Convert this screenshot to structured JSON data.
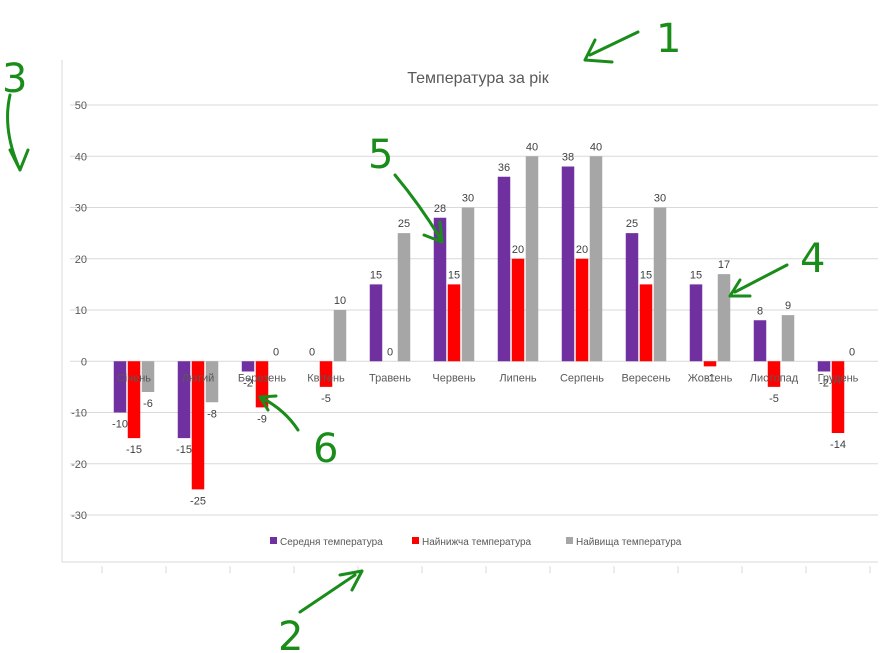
{
  "chart_data": {
    "type": "bar",
    "title": "Температура за рік",
    "xlabel": "",
    "ylabel": "",
    "ylim": [
      -30,
      50
    ],
    "yticks": [
      50,
      40,
      30,
      20,
      10,
      0,
      -10,
      -20,
      -30
    ],
    "grid": true,
    "legend_position": "bottom",
    "categories": [
      "Січень",
      "Лютий",
      "Березень",
      "Квітень",
      "Травень",
      "Червень",
      "Липень",
      "Серпень",
      "Вересень",
      "Жовтень",
      "Листопад",
      "Грудень"
    ],
    "series": [
      {
        "name": "Середня температура",
        "color": "#7030a0",
        "values": [
          -10,
          -15,
          -2,
          0,
          15,
          28,
          36,
          38,
          25,
          15,
          8,
          -2
        ],
        "labels": [
          "-10",
          "-15",
          "-2",
          "0",
          "15",
          "28",
          "36",
          "38",
          "25",
          "15",
          "8",
          "-2"
        ]
      },
      {
        "name": "Найнижча температура",
        "color": "#ff0000",
        "values": [
          -15,
          -25,
          -9,
          -5,
          0,
          15,
          20,
          20,
          15,
          -1,
          -5,
          -14
        ],
        "labels": [
          "-15",
          "-25",
          "-9",
          "-5",
          "0",
          "15",
          "20",
          "20",
          "15",
          "-1",
          "-5",
          "-14"
        ]
      },
      {
        "name": "Найвища температура",
        "color": "#a6a6a6",
        "values": [
          -6,
          -8,
          0,
          10,
          25,
          30,
          40,
          40,
          30,
          17,
          9,
          0
        ],
        "labels": [
          "-6",
          "-8",
          "0",
          "10",
          "25",
          "30",
          "40",
          "40",
          "30",
          "17",
          "9",
          "0"
        ]
      }
    ]
  },
  "annotations": {
    "color": "#1a8c1a",
    "marks": [
      "1",
      "2",
      "3",
      "4",
      "5",
      "6"
    ]
  }
}
